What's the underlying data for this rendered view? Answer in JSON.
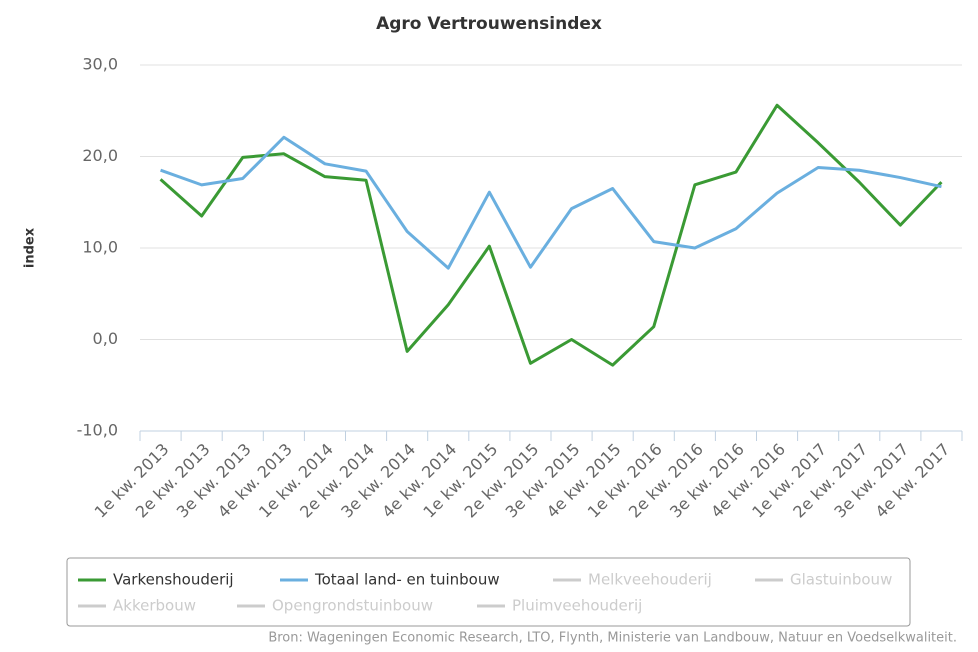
{
  "chart_data": {
    "type": "line",
    "title": "Agro Vertrouwensindex",
    "y_label": "index",
    "categories": [
      "1e kw. 2013",
      "2e kw. 2013",
      "3e kw. 2013",
      "4e kw. 2013",
      "1e kw. 2014",
      "2e kw. 2014",
      "3e kw. 2014",
      "4e kw. 2014",
      "1e kw. 2015",
      "2e kw. 2015",
      "3e kw. 2015",
      "4e kw. 2015",
      "1e kw. 2016",
      "2e kw. 2016",
      "3e kw. 2016",
      "4e kw. 2016",
      "1e kw. 2017",
      "2e kw. 2017",
      "3e kw. 2017",
      "4e kw. 2017"
    ],
    "series": [
      {
        "name": "Varkenshouderij",
        "color": "#3a9a34",
        "values": [
          17.5,
          13.5,
          19.9,
          20.3,
          17.8,
          17.4,
          -1.3,
          3.8,
          10.2,
          -2.6,
          0,
          -2.8,
          1.4,
          16.9,
          18.3,
          25.6,
          21.5,
          17.2,
          12.5,
          17.2
        ]
      },
      {
        "name": "Totaal land- en tuinbouw",
        "color": "#6aafdf",
        "values": [
          18.5,
          16.9,
          17.6,
          22.1,
          19.2,
          18.4,
          11.8,
          7.8,
          16.1,
          7.9,
          14.3,
          16.5,
          10.7,
          10.0,
          12.1,
          16.0,
          18.8,
          18.5,
          17.7,
          16.7
        ]
      }
    ],
    "inactive_series": [
      "Melkveehouderij",
      "Glastuinbouw",
      "Akkerbouw",
      "Opengrondstuinbouw",
      "Pluimveehouderij"
    ],
    "inactive_color": "#cccccc",
    "ylim": [
      -10,
      30
    ],
    "yticks": [
      {
        "value": -10,
        "label": "-10,0"
      },
      {
        "value": 0,
        "label": "0,0"
      },
      {
        "value": 10,
        "label": "10,0"
      },
      {
        "value": 20,
        "label": "20,0"
      },
      {
        "value": 30,
        "label": "30,0"
      }
    ],
    "grid": true,
    "source": "Bron: Wageningen Economic Research, LTO, Flynth, Ministerie van Landbouw, Natuur en Voedselkwaliteit."
  }
}
